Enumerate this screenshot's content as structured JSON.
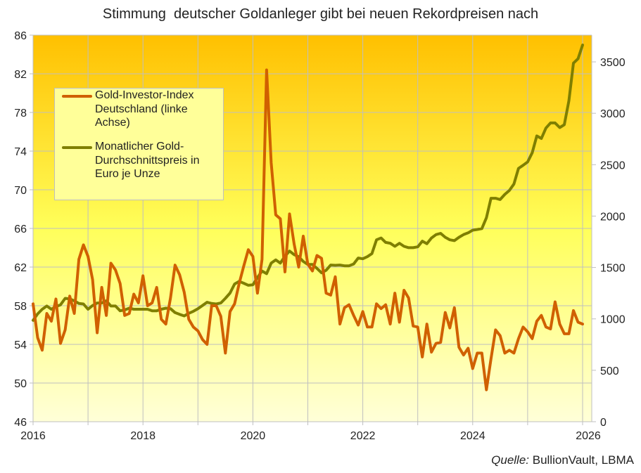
{
  "title": "Stimmung  deutscher Goldanleger gibt bei neuen Rekordpreisen nach",
  "source": {
    "label": "Quelle:",
    "text": " BullionVault, LBMA"
  },
  "chart_data": {
    "type": "line",
    "title": "Stimmung  deutscher Goldanleger gibt bei neuen Rekordpreisen nach",
    "x_start": "2016-01",
    "x_frequency": "monthly",
    "xlim": [
      2016,
      2026.15
    ],
    "x_ticks": [
      "2016",
      "2018",
      "2020",
      "2022",
      "2024",
      "2026"
    ],
    "x_gridlines_every_year": true,
    "y_left": {
      "lim": [
        46,
        86
      ],
      "ticks": [
        46,
        50,
        54,
        58,
        62,
        66,
        70,
        74,
        78,
        82,
        86
      ]
    },
    "y_right": {
      "lim": [
        0,
        3760
      ],
      "ticks": [
        0,
        500,
        1000,
        1500,
        2000,
        2500,
        3000,
        3500
      ]
    },
    "grid": true,
    "legend_position": "top-left",
    "colors": {
      "background_top": "#FFC000",
      "background_mid": "#FFFF5A",
      "background_bottom": "#FFFFD8",
      "grid": "#BFBFBF",
      "legend_bg": "#FFFF99"
    },
    "series": [
      {
        "name": "Gold-Investor-Index Deutschland (linke Achse)",
        "axis": "left",
        "color": "#D06000",
        "values": [
          58.2,
          54.7,
          53.4,
          57.2,
          56.4,
          58.7,
          54.1,
          55.5,
          59.0,
          57.2,
          62.8,
          64.3,
          63.1,
          60.7,
          55.2,
          59.9,
          57.0,
          62.4,
          61.7,
          60.3,
          57.0,
          57.2,
          59.2,
          58.3,
          61.1,
          58.0,
          58.3,
          59.9,
          56.6,
          56.1,
          58.8,
          62.2,
          61.2,
          59.4,
          56.6,
          55.8,
          55.4,
          54.5,
          54.0,
          58.0,
          58.0,
          56.9,
          53.1,
          57.4,
          58.2,
          60.3,
          62.1,
          63.8,
          63.1,
          59.3,
          62.8,
          82.4,
          72.8,
          67.4,
          67.0,
          61.5,
          67.5,
          64.4,
          62.0,
          65.2,
          62.3,
          61.6,
          63.2,
          62.9,
          59.3,
          59.1,
          61.0,
          56.1,
          57.8,
          58.1,
          57.0,
          56.0,
          57.4,
          55.8,
          55.8,
          58.2,
          57.7,
          58.1,
          56.1,
          59.3,
          56.3,
          59.6,
          58.8,
          55.9,
          55.8,
          52.7,
          56.1,
          53.2,
          54.1,
          54.2,
          57.3,
          55.7,
          57.8,
          53.7,
          52.9,
          53.6,
          51.5,
          53.1,
          53.1,
          49.3,
          52.5,
          55.5,
          54.9,
          53.1,
          53.4,
          53.1,
          54.6,
          55.8,
          55.3,
          54.6,
          56.4,
          57.0,
          55.8,
          55.6,
          58.4,
          56.1,
          55.1,
          55.1,
          57.5,
          56.3,
          56.1
        ]
      },
      {
        "name": "Monatlicher Gold-Durchschnittspreis in Euro je Unze",
        "axis": "right",
        "color": "#7F7F00",
        "values": [
          986,
          1049,
          1094,
          1125,
          1094,
          1120,
          1137,
          1200,
          1195,
          1175,
          1150,
          1145,
          1094,
          1130,
          1155,
          1155,
          1175,
          1125,
          1125,
          1079,
          1087,
          1104,
          1094,
          1094,
          1094,
          1094,
          1079,
          1079,
          1094,
          1104,
          1099,
          1061,
          1044,
          1029,
          1054,
          1074,
          1099,
          1130,
          1162,
          1150,
          1145,
          1155,
          1200,
          1251,
          1339,
          1365,
          1347,
          1327,
          1332,
          1403,
          1466,
          1440,
          1542,
          1574,
          1542,
          1610,
          1660,
          1625,
          1605,
          1559,
          1529,
          1529,
          1491,
          1448,
          1473,
          1524,
          1521,
          1524,
          1516,
          1516,
          1534,
          1592,
          1585,
          1605,
          1635,
          1769,
          1787,
          1744,
          1736,
          1706,
          1736,
          1706,
          1693,
          1693,
          1701,
          1756,
          1731,
          1787,
          1820,
          1832,
          1794,
          1769,
          1761,
          1794,
          1820,
          1837,
          1863,
          1870,
          1878,
          1984,
          2173,
          2173,
          2161,
          2211,
          2249,
          2312,
          2464,
          2494,
          2527,
          2616,
          2780,
          2755,
          2856,
          2906,
          2906,
          2861,
          2889,
          3121,
          3488,
          3530,
          3664
        ]
      }
    ]
  }
}
